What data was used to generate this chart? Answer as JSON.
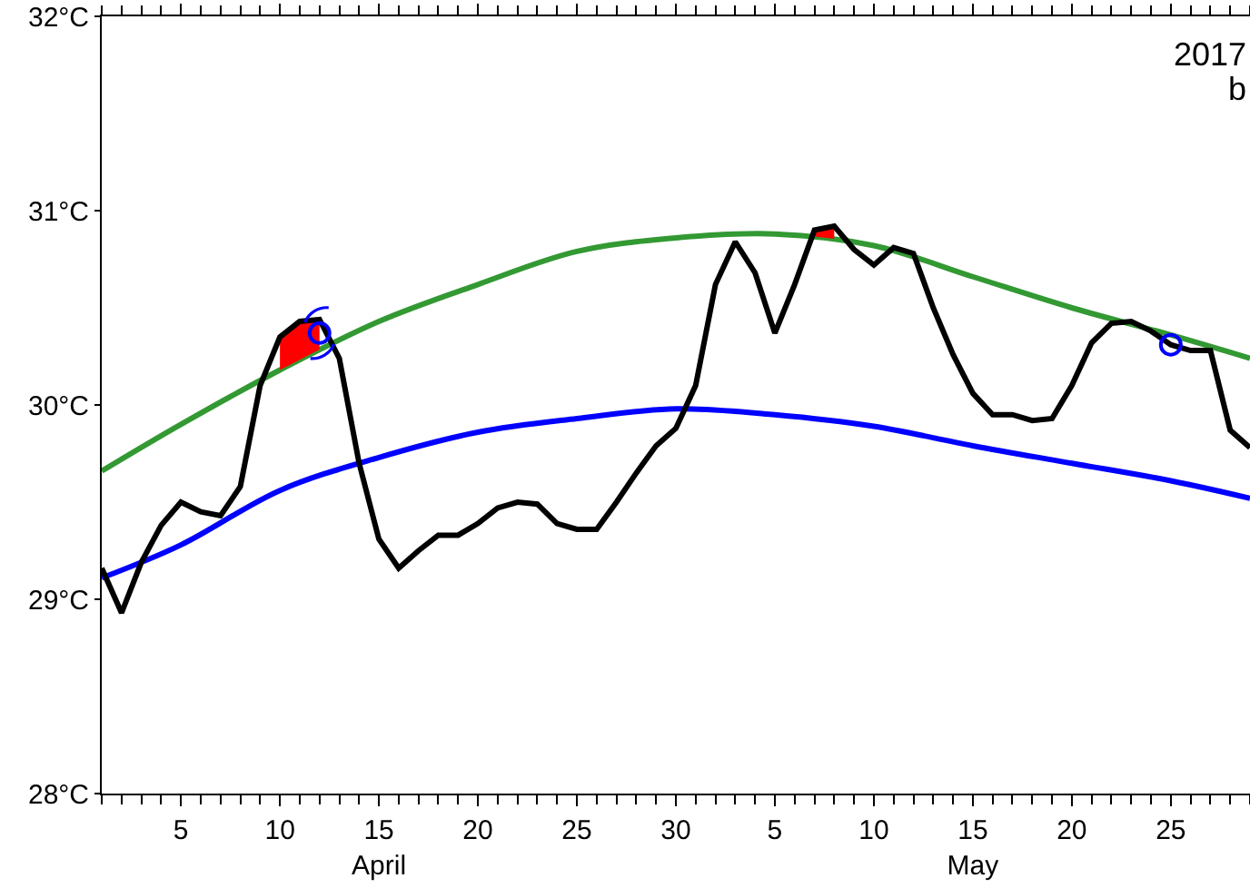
{
  "chart_data": {
    "type": "line",
    "annotations": [
      "2017",
      "b"
    ],
    "x": [
      "2017-04-01",
      "2017-04-02",
      "2017-04-03",
      "2017-04-04",
      "2017-04-05",
      "2017-04-06",
      "2017-04-07",
      "2017-04-08",
      "2017-04-09",
      "2017-04-10",
      "2017-04-11",
      "2017-04-12",
      "2017-04-13",
      "2017-04-14",
      "2017-04-15",
      "2017-04-16",
      "2017-04-17",
      "2017-04-18",
      "2017-04-19",
      "2017-04-20",
      "2017-04-21",
      "2017-04-22",
      "2017-04-23",
      "2017-04-24",
      "2017-04-25",
      "2017-04-26",
      "2017-04-27",
      "2017-04-28",
      "2017-04-29",
      "2017-04-30",
      "2017-05-01",
      "2017-05-02",
      "2017-05-03",
      "2017-05-04",
      "2017-05-05",
      "2017-05-06",
      "2017-05-07",
      "2017-05-08",
      "2017-05-09",
      "2017-05-10",
      "2017-05-11",
      "2017-05-12",
      "2017-05-13",
      "2017-05-14",
      "2017-05-15",
      "2017-05-16",
      "2017-05-17",
      "2017-05-18",
      "2017-05-19",
      "2017-05-20",
      "2017-05-21",
      "2017-05-22",
      "2017-05-23",
      "2017-05-24",
      "2017-05-25",
      "2017-05-26",
      "2017-05-27",
      "2017-05-28",
      "2017-05-29"
    ],
    "series": [
      {
        "type": "line",
        "color": "#339933",
        "x": [
          "2017-04-01",
          "2017-04-05",
          "2017-04-10",
          "2017-04-15",
          "2017-04-20",
          "2017-04-25",
          "2017-04-30",
          "2017-05-05",
          "2017-05-10",
          "2017-05-15",
          "2017-05-20",
          "2017-05-25",
          "2017-05-29"
        ],
        "values": [
          29.66,
          29.9,
          30.18,
          30.43,
          30.62,
          30.79,
          30.86,
          30.88,
          30.82,
          30.66,
          30.5,
          30.36,
          30.24
        ]
      },
      {
        "type": "area",
        "color": "#ff0000",
        "x": [
          "2017-04-10",
          "2017-04-11",
          "2017-04-12",
          "2017-05-07",
          "2017-05-08"
        ],
        "values": [
          30.35,
          30.43,
          30.44,
          30.9,
          30.92
        ]
      },
      {
        "type": "line",
        "color": "#0000ff",
        "x": [
          "2017-04-01",
          "2017-04-05",
          "2017-04-10",
          "2017-04-15",
          "2017-04-20",
          "2017-04-25",
          "2017-04-30",
          "2017-05-05",
          "2017-05-10",
          "2017-05-15",
          "2017-05-20",
          "2017-05-25",
          "2017-05-29"
        ],
        "values": [
          29.11,
          29.28,
          29.56,
          29.73,
          29.86,
          29.93,
          29.98,
          29.95,
          29.89,
          29.79,
          29.7,
          29.61,
          29.52
        ]
      },
      {
        "color": "#000000",
        "values": [
          29.16,
          28.93,
          29.19,
          29.38,
          29.5,
          29.45,
          29.43,
          29.58,
          30.1,
          30.35,
          30.43,
          30.44,
          30.24,
          29.7,
          29.31,
          29.16,
          29.25,
          29.33,
          29.33,
          29.39,
          29.47,
          29.5,
          29.49,
          29.39,
          29.36,
          29.36,
          29.5,
          29.65,
          29.79,
          29.88,
          30.1,
          30.62,
          30.84,
          30.68,
          30.37,
          30.62,
          30.9,
          30.92,
          30.8,
          30.72,
          30.81,
          30.78,
          30.5,
          30.26,
          30.06,
          29.95,
          29.95,
          29.92,
          29.93,
          30.1,
          30.32,
          30.42,
          30.43,
          30.38,
          30.31,
          30.28,
          30.28,
          29.87,
          29.78
        ]
      },
      {
        "type": "scatter",
        "color": "#0000ff",
        "marker": "circle",
        "x": [
          "2017-04-12",
          "2017-05-25"
        ],
        "values": [
          30.37,
          30.31
        ]
      }
    ],
    "xlim": [
      "2017-04-01",
      "2017-05-29"
    ],
    "xticks": [
      {
        "value": "2017-04-05",
        "label": "5"
      },
      {
        "value": "2017-04-10",
        "label": "10"
      },
      {
        "value": "2017-04-15",
        "label": "15\nApril"
      },
      {
        "value": "2017-04-20",
        "label": "20"
      },
      {
        "value": "2017-04-25",
        "label": "25"
      },
      {
        "value": "2017-04-30",
        "label": "30"
      },
      {
        "value": "2017-05-05",
        "label": "5"
      },
      {
        "value": "2017-05-10",
        "label": "10"
      },
      {
        "value": "2017-05-15",
        "label": "15\nMay"
      },
      {
        "value": "2017-05-20",
        "label": "20"
      },
      {
        "value": "2017-05-25",
        "label": "25"
      }
    ],
    "ylim": [
      28,
      32
    ],
    "yticks": [
      {
        "value": 28,
        "label": "28°C"
      },
      {
        "value": 29,
        "label": "29°C"
      },
      {
        "value": 30,
        "label": "30°C"
      },
      {
        "value": 31,
        "label": "31°C"
      },
      {
        "value": 32,
        "label": "32°C"
      }
    ],
    "grid": false,
    "line_style": "solid"
  }
}
